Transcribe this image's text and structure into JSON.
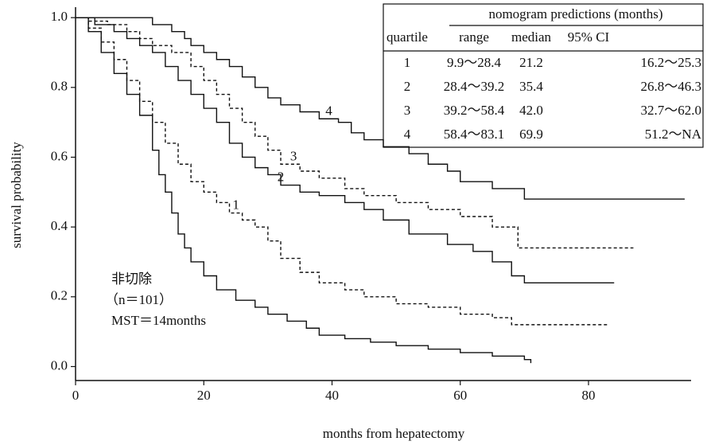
{
  "chart_data": {
    "type": "step",
    "xlabel": "months from hepatectomy",
    "ylabel": "survival probability",
    "xlim": [
      0,
      96
    ],
    "ylim": [
      -0.04,
      1.03
    ],
    "xticks": [
      0,
      20,
      40,
      60,
      80
    ],
    "yticks": [
      {
        "value": 0,
        "label": "0.0"
      },
      0.2,
      0.4,
      0.6,
      0.8,
      {
        "value": 1,
        "label": "1.0"
      }
    ],
    "annotations": [
      "非切除",
      "（n＝101）",
      "MST＝14months"
    ],
    "series": [
      {
        "name": "1",
        "color": "#111111",
        "dashed": true,
        "x": [
          0,
          2,
          4,
          6,
          8,
          10,
          12,
          14,
          16,
          18,
          20,
          22,
          24,
          26,
          28,
          30,
          32,
          35,
          38,
          42,
          45,
          50,
          55,
          60,
          65,
          68,
          83
        ],
        "values": [
          1.0,
          0.97,
          0.93,
          0.88,
          0.82,
          0.76,
          0.7,
          0.64,
          0.58,
          0.53,
          0.5,
          0.47,
          0.44,
          0.42,
          0.4,
          0.36,
          0.31,
          0.27,
          0.24,
          0.22,
          0.2,
          0.18,
          0.17,
          0.15,
          0.14,
          0.12,
          0.12
        ]
      },
      {
        "name": "2",
        "color": "#111111",
        "dashed": false,
        "x": [
          0,
          3,
          6,
          8,
          10,
          12,
          14,
          16,
          18,
          20,
          22,
          24,
          26,
          28,
          30,
          32,
          35,
          38,
          42,
          45,
          48,
          52,
          58,
          62,
          65,
          68,
          70,
          84
        ],
        "values": [
          1.0,
          0.98,
          0.96,
          0.94,
          0.92,
          0.9,
          0.86,
          0.82,
          0.78,
          0.74,
          0.7,
          0.64,
          0.6,
          0.57,
          0.55,
          0.52,
          0.5,
          0.49,
          0.47,
          0.45,
          0.42,
          0.38,
          0.35,
          0.33,
          0.3,
          0.26,
          0.24,
          0.24
        ]
      },
      {
        "name": "3",
        "color": "#111111",
        "dashed": true,
        "x": [
          0,
          2,
          5,
          8,
          10,
          12,
          15,
          18,
          20,
          22,
          24,
          26,
          28,
          30,
          32,
          35,
          38,
          42,
          45,
          50,
          55,
          60,
          65,
          69,
          87
        ],
        "values": [
          1.0,
          0.99,
          0.98,
          0.96,
          0.94,
          0.92,
          0.9,
          0.86,
          0.82,
          0.78,
          0.74,
          0.7,
          0.66,
          0.62,
          0.58,
          0.56,
          0.54,
          0.51,
          0.49,
          0.47,
          0.45,
          0.43,
          0.4,
          0.34,
          0.34
        ]
      },
      {
        "name": "4",
        "color": "#111111",
        "dashed": false,
        "x": [
          0,
          12,
          15,
          17,
          18,
          20,
          22,
          24,
          26,
          28,
          30,
          32,
          35,
          38,
          41,
          43,
          45,
          48,
          52,
          55,
          58,
          60,
          65,
          70,
          95
        ],
        "values": [
          1.0,
          0.98,
          0.96,
          0.94,
          0.92,
          0.9,
          0.88,
          0.86,
          0.83,
          0.8,
          0.77,
          0.75,
          0.73,
          0.71,
          0.7,
          0.67,
          0.65,
          0.63,
          0.61,
          0.58,
          0.56,
          0.53,
          0.51,
          0.48,
          0.48
        ]
      },
      {
        "color": "#111111",
        "dashed": false,
        "x": [
          0,
          2,
          4,
          6,
          8,
          10,
          12,
          13,
          14,
          15,
          16,
          17,
          18,
          20,
          22,
          25,
          28,
          30,
          33,
          36,
          38,
          42,
          46,
          50,
          55,
          60,
          65,
          70,
          71
        ],
        "values": [
          1.0,
          0.96,
          0.9,
          0.84,
          0.78,
          0.72,
          0.62,
          0.55,
          0.5,
          0.44,
          0.38,
          0.34,
          0.3,
          0.26,
          0.22,
          0.19,
          0.17,
          0.15,
          0.13,
          0.11,
          0.09,
          0.08,
          0.07,
          0.06,
          0.05,
          0.04,
          0.03,
          0.02,
          0.01
        ]
      }
    ],
    "table": {
      "title": "nomogram predictions (months)",
      "columns": [
        "quartile",
        "range",
        "median",
        "95% CI"
      ],
      "rows": [
        [
          "1",
          "9.9～28.4",
          "21.2",
          "16.2～25.3"
        ],
        [
          "2",
          "28.4～39.2",
          "35.4",
          "26.8～46.3"
        ],
        [
          "3",
          "39.2～58.4",
          "42.0",
          "32.7～62.0"
        ],
        [
          "4",
          "58.4～83.1",
          "69.9",
          "51.2～NA"
        ]
      ]
    }
  }
}
